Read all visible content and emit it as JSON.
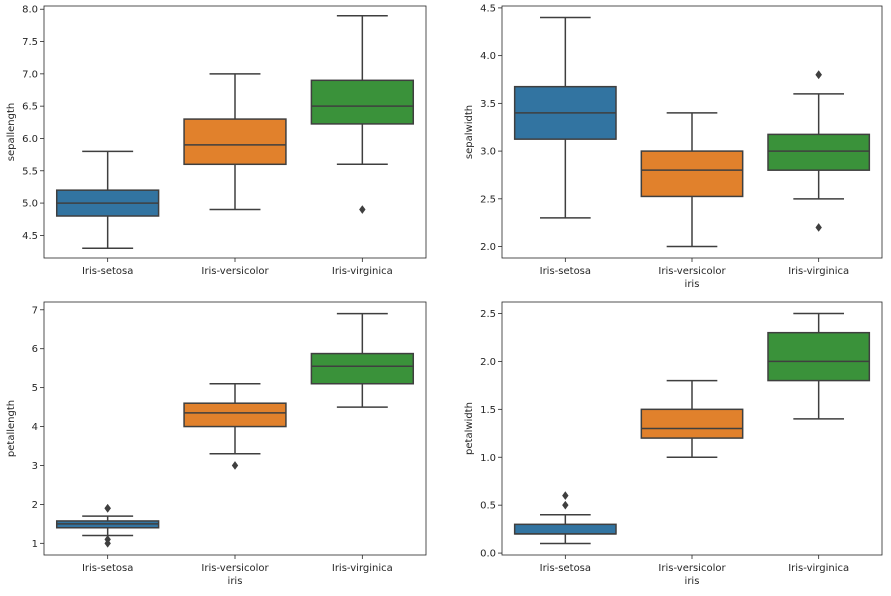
{
  "chart_data": [
    {
      "type": "box",
      "xlabel": "",
      "ylabel": "sepallength",
      "categories": [
        "Iris-setosa",
        "Iris-versicolor",
        "Iris-virginica"
      ],
      "ylim": [
        4.15,
        8.05
      ],
      "yticks": [
        "4.5",
        "5.0",
        "5.5",
        "6.0",
        "6.5",
        "7.0",
        "7.5",
        "8.0"
      ],
      "boxes": [
        {
          "category": "Iris-setosa",
          "min": 4.3,
          "q1": 4.8,
          "median": 5.0,
          "q3": 5.2,
          "max": 5.8,
          "outliers": []
        },
        {
          "category": "Iris-versicolor",
          "min": 4.9,
          "q1": 5.6,
          "median": 5.9,
          "q3": 6.3,
          "max": 7.0,
          "outliers": []
        },
        {
          "category": "Iris-virginica",
          "min": 5.6,
          "q1": 6.225,
          "median": 6.5,
          "q3": 6.9,
          "max": 7.9,
          "outliers": [
            4.9
          ]
        }
      ],
      "grid": false
    },
    {
      "type": "box",
      "xlabel": "iris",
      "ylabel": "sepalwidth",
      "categories": [
        "Iris-setosa",
        "Iris-versicolor",
        "Iris-virginica"
      ],
      "ylim": [
        1.88,
        4.52
      ],
      "yticks": [
        "2.0",
        "2.5",
        "3.0",
        "3.5",
        "4.0",
        "4.5"
      ],
      "boxes": [
        {
          "category": "Iris-setosa",
          "min": 2.3,
          "q1": 3.125,
          "median": 3.4,
          "q3": 3.675,
          "max": 4.4,
          "outliers": []
        },
        {
          "category": "Iris-versicolor",
          "min": 2.0,
          "q1": 2.525,
          "median": 2.8,
          "q3": 3.0,
          "max": 3.4,
          "outliers": []
        },
        {
          "category": "Iris-virginica",
          "min": 2.5,
          "q1": 2.8,
          "median": 3.0,
          "q3": 3.175,
          "max": 3.6,
          "outliers": [
            3.8,
            3.8,
            2.2
          ]
        }
      ],
      "grid": false
    },
    {
      "type": "box",
      "xlabel": "iris",
      "ylabel": "petallength",
      "categories": [
        "Iris-setosa",
        "Iris-versicolor",
        "Iris-virginica"
      ],
      "ylim": [
        0.7,
        7.2
      ],
      "yticks": [
        "1",
        "2",
        "3",
        "4",
        "5",
        "6",
        "7"
      ],
      "boxes": [
        {
          "category": "Iris-setosa",
          "min": 1.2,
          "q1": 1.4,
          "median": 1.5,
          "q3": 1.575,
          "max": 1.7,
          "outliers": [
            1.9,
            1.9,
            1.1,
            1.0
          ]
        },
        {
          "category": "Iris-versicolor",
          "min": 3.3,
          "q1": 4.0,
          "median": 4.35,
          "q3": 4.6,
          "max": 5.1,
          "outliers": [
            3.0
          ]
        },
        {
          "category": "Iris-virginica",
          "min": 4.5,
          "q1": 5.1,
          "median": 5.55,
          "q3": 5.875,
          "max": 6.9,
          "outliers": []
        }
      ],
      "grid": false
    },
    {
      "type": "box",
      "xlabel": "iris",
      "ylabel": "petalwidth",
      "categories": [
        "Iris-setosa",
        "Iris-versicolor",
        "Iris-virginica"
      ],
      "ylim": [
        -0.02,
        2.62
      ],
      "yticks": [
        "0.0",
        "0.5",
        "1.0",
        "1.5",
        "2.0",
        "2.5"
      ],
      "boxes": [
        {
          "category": "Iris-setosa",
          "min": 0.1,
          "q1": 0.2,
          "median": 0.2,
          "q3": 0.3,
          "max": 0.4,
          "outliers": [
            0.6,
            0.5
          ]
        },
        {
          "category": "Iris-versicolor",
          "min": 1.0,
          "q1": 1.2,
          "median": 1.3,
          "q3": 1.5,
          "max": 1.8,
          "outliers": []
        },
        {
          "category": "Iris-virginica",
          "min": 1.4,
          "q1": 1.8,
          "median": 2.0,
          "q3": 2.3,
          "max": 2.5,
          "outliers": []
        }
      ],
      "grid": false
    }
  ],
  "colors": {
    "Iris-setosa": "#3274a1",
    "Iris-versicolor": "#e1812c",
    "Iris-virginica": "#3a923a",
    "line": "#3f3f3f"
  }
}
